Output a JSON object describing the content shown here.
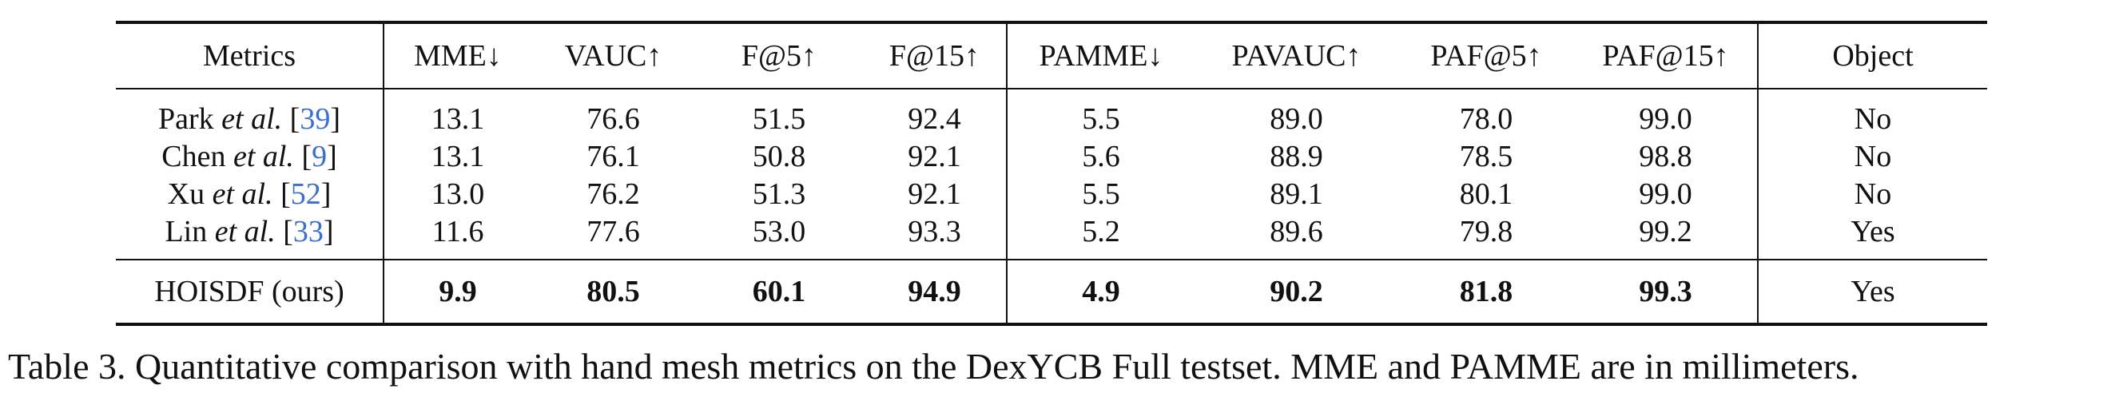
{
  "table": {
    "headers": [
      "Metrics",
      "MME↓",
      "VAUC↑",
      "F@5↑",
      "F@15↑",
      "PAMME↓",
      "PAVAUC↑",
      "PAF@5↑",
      "PAF@15↑",
      "Object"
    ],
    "rows": [
      {
        "author": "Park",
        "etal": "et al.",
        "cite": "39",
        "values": [
          "13.1",
          "76.6",
          "51.5",
          "92.4",
          "5.5",
          "89.0",
          "78.0",
          "99.0"
        ],
        "object": "No"
      },
      {
        "author": "Chen",
        "etal": "et al.",
        "cite": "9",
        "values": [
          "13.1",
          "76.1",
          "50.8",
          "92.1",
          "5.6",
          "88.9",
          "78.5",
          "98.8"
        ],
        "object": "No"
      },
      {
        "author": "Xu",
        "etal": "et al.",
        "cite": "52",
        "values": [
          "13.0",
          "76.2",
          "51.3",
          "92.1",
          "5.5",
          "89.1",
          "80.1",
          "99.0"
        ],
        "object": "No"
      },
      {
        "author": "Lin",
        "etal": "et al.",
        "cite": "33",
        "values": [
          "11.6",
          "77.6",
          "53.0",
          "93.3",
          "5.2",
          "89.6",
          "79.8",
          "99.2"
        ],
        "object": "Yes"
      }
    ],
    "ours": {
      "label": "HOISDF (ours)",
      "values": [
        "9.9",
        "80.5",
        "60.1",
        "94.9",
        "4.9",
        "90.2",
        "81.8",
        "99.3"
      ],
      "object": "Yes"
    }
  },
  "caption": "Table 3. Quantitative comparison with hand mesh metrics on the DexYCB Full testset. MME and PAMME are in millimeters."
}
